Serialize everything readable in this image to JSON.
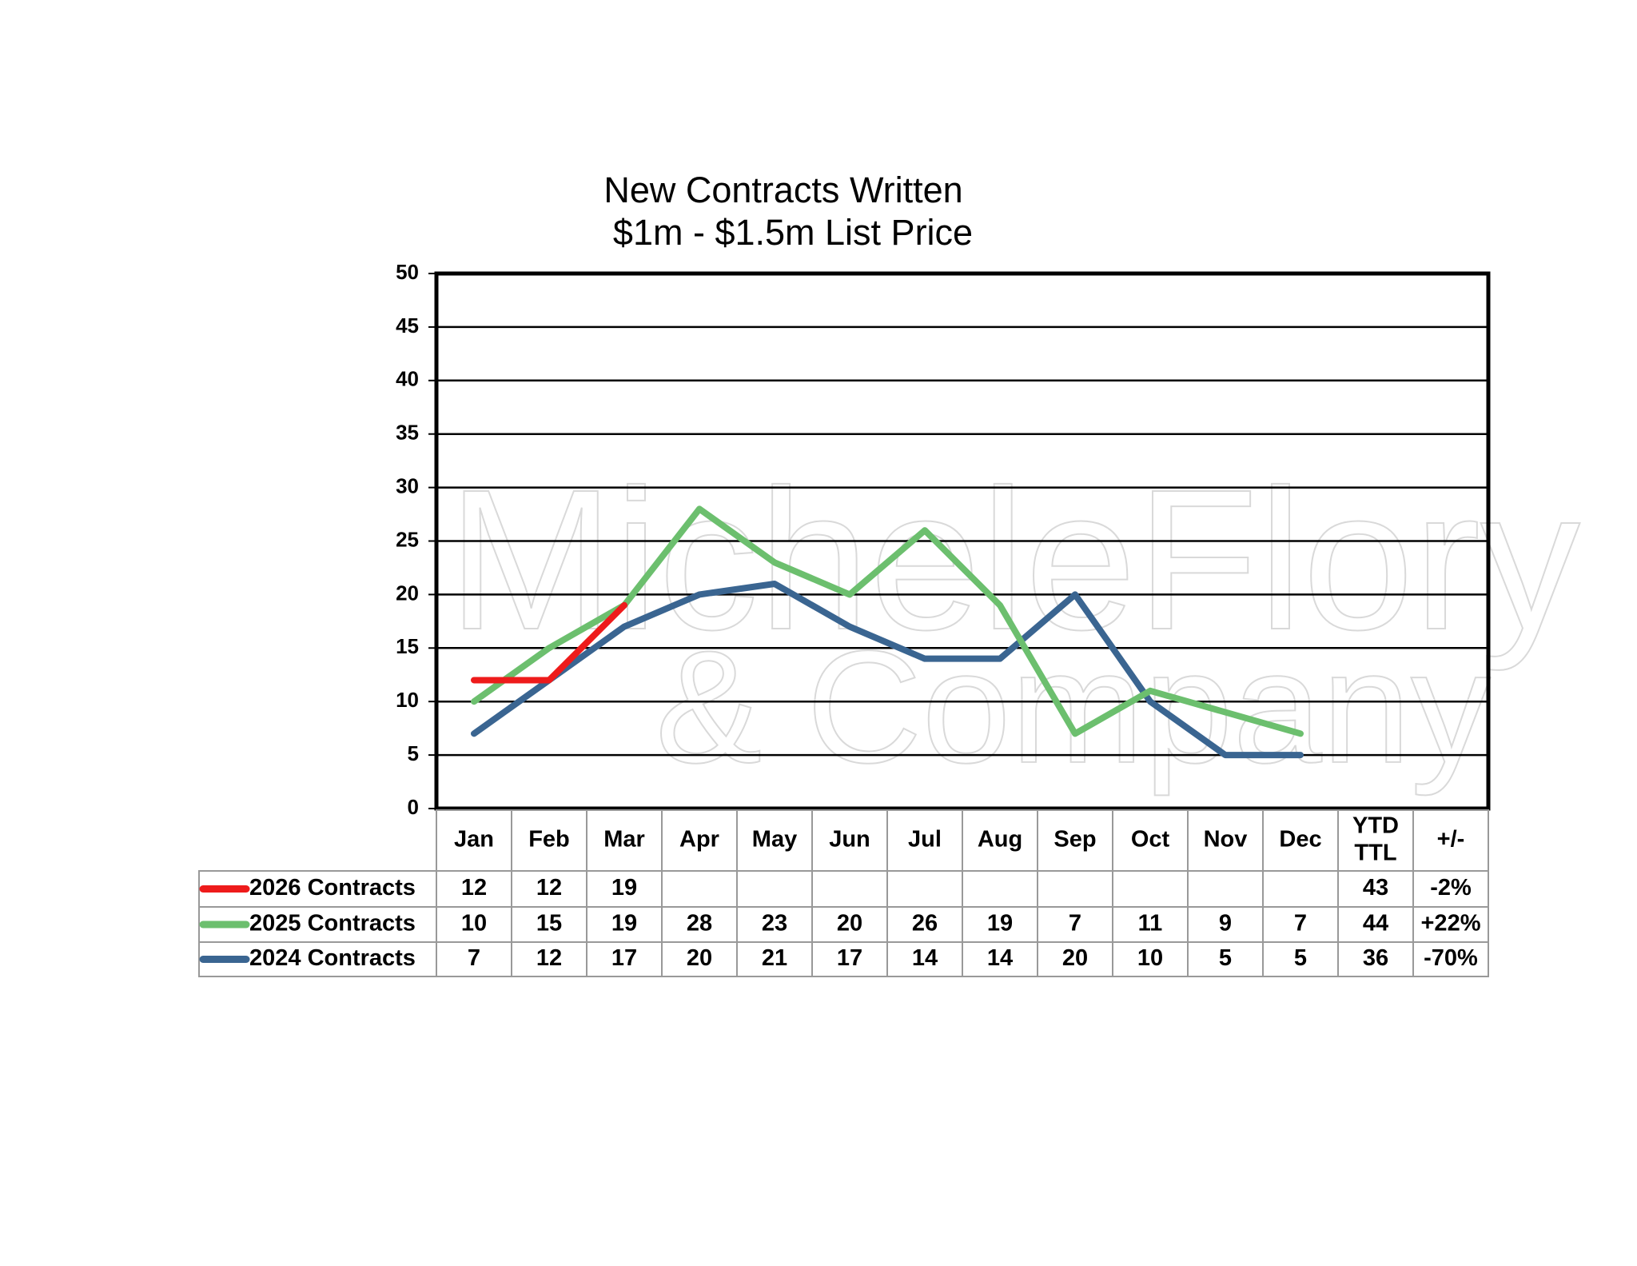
{
  "chart_data": {
    "type": "line",
    "title": "New Contracts Written",
    "subtitle": "$1m - $1.5m List Price",
    "watermark": [
      "MicheleFlory",
      "& Company"
    ],
    "categories": [
      "Jan",
      "Feb",
      "Mar",
      "Apr",
      "May",
      "Jun",
      "Jul",
      "Aug",
      "Sep",
      "Oct",
      "Nov",
      "Dec"
    ],
    "total_header": [
      "YTD",
      "TTL"
    ],
    "change_header": "+/-",
    "series": [
      {
        "name": "2026 Contracts",
        "color": "#ee1b1b",
        "values": [
          12,
          12,
          19,
          null,
          null,
          null,
          null,
          null,
          null,
          null,
          null,
          null
        ],
        "ytd": 43,
        "change": "-2%"
      },
      {
        "name": "2025 Contracts",
        "color": "#6cbf6e",
        "values": [
          10,
          15,
          19,
          28,
          23,
          20,
          26,
          19,
          7,
          11,
          9,
          7
        ],
        "ytd": 44,
        "change": "+22%"
      },
      {
        "name": "2024 Contracts",
        "color": "#3a6591",
        "values": [
          7,
          12,
          17,
          20,
          21,
          17,
          14,
          14,
          20,
          10,
          5,
          5
        ],
        "ytd": 36,
        "change": "-70%"
      }
    ],
    "ylim": [
      0,
      50
    ],
    "yticks": [
      0,
      5,
      10,
      15,
      20,
      25,
      30,
      35,
      40,
      45,
      50
    ],
    "grid": true
  }
}
